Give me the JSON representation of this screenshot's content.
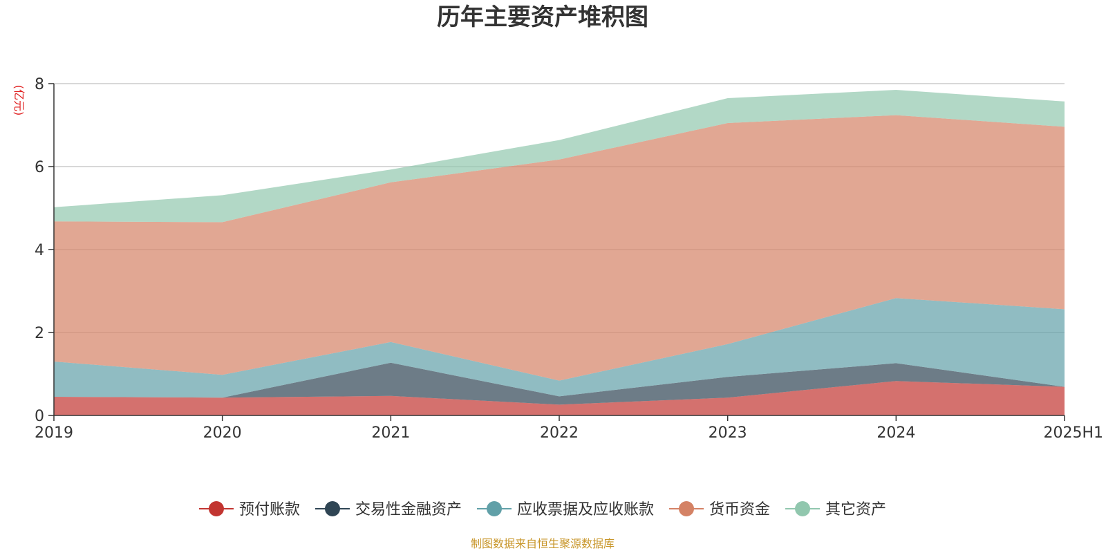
{
  "chart_data": {
    "type": "area",
    "stacked": true,
    "title": "历年主要资产堆积图",
    "unit_label": "(亿元)",
    "categories": [
      "2019",
      "2020",
      "2021",
      "2022",
      "2023",
      "2024",
      "2025H1"
    ],
    "ylim": [
      0,
      8
    ],
    "yticks": [
      "0",
      "2",
      "4",
      "6",
      "8"
    ],
    "grid": true,
    "legend_position": "bottom",
    "series": [
      {
        "name": "预付账款",
        "color": "#c23531",
        "values": [
          0.45,
          0.43,
          0.47,
          0.26,
          0.43,
          0.83,
          0.69
        ]
      },
      {
        "name": "交易性金融资产",
        "color": "#2f4554",
        "values": [
          0.0,
          0.0,
          0.8,
          0.2,
          0.5,
          0.43,
          0.0
        ]
      },
      {
        "name": "应收票据及应收账款",
        "color": "#61a0a8",
        "values": [
          0.85,
          0.55,
          0.5,
          0.38,
          0.79,
          1.57,
          1.87
        ]
      },
      {
        "name": "货币资金",
        "color": "#d48265",
        "values": [
          3.38,
          3.68,
          3.85,
          5.33,
          5.33,
          4.41,
          4.4
        ]
      },
      {
        "name": "其它资产",
        "color": "#91c7ae",
        "values": [
          0.34,
          0.65,
          0.31,
          0.47,
          0.6,
          0.61,
          0.61
        ]
      }
    ]
  },
  "footer": {
    "source": "制图数据来自恒生聚源数据库"
  }
}
